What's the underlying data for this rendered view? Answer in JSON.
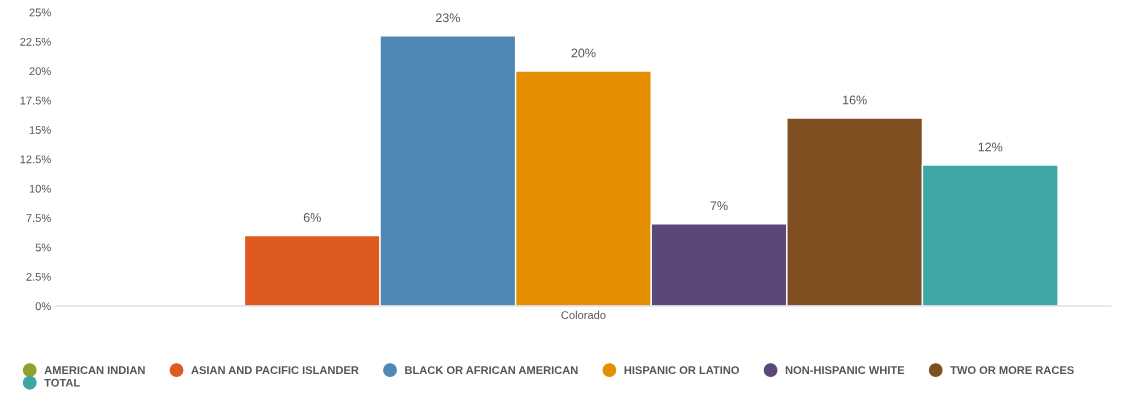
{
  "chart_data": {
    "type": "bar",
    "categories": [
      "Colorado"
    ],
    "series": [
      {
        "name": "AMERICAN INDIAN",
        "color": "#8fa32a",
        "values": [
          null
        ],
        "value_labels": [
          null
        ]
      },
      {
        "name": "ASIAN AND PACIFIC ISLANDER",
        "color": "#de5a21",
        "values": [
          6
        ],
        "value_labels": [
          "6%"
        ]
      },
      {
        "name": "BLACK OR AFRICAN AMERICAN",
        "color": "#5088b5",
        "values": [
          23
        ],
        "value_labels": [
          "23%"
        ]
      },
      {
        "name": "HISPANIC OR LATINO",
        "color": "#e58f00",
        "values": [
          20
        ],
        "value_labels": [
          "20%"
        ]
      },
      {
        "name": "NON-HISPANIC WHITE",
        "color": "#5c4878",
        "values": [
          7
        ],
        "value_labels": [
          "7%"
        ]
      },
      {
        "name": "TWO OR MORE RACES",
        "color": "#7f4f22",
        "values": [
          16
        ],
        "value_labels": [
          "16%"
        ]
      },
      {
        "name": "TOTAL",
        "color": "#3ea6a3",
        "values": [
          12
        ],
        "value_labels": [
          "12%"
        ]
      }
    ],
    "ylim": [
      0,
      25
    ],
    "yticks": [
      {
        "value": 0,
        "label": "0%"
      },
      {
        "value": 2.5,
        "label": "2.5%"
      },
      {
        "value": 5,
        "label": "5%"
      },
      {
        "value": 7.5,
        "label": "7.5%"
      },
      {
        "value": 10,
        "label": "10%"
      },
      {
        "value": 12.5,
        "label": "12.5%"
      },
      {
        "value": 15,
        "label": "15%"
      },
      {
        "value": 17.5,
        "label": "17.5%"
      },
      {
        "value": 20,
        "label": "20%"
      },
      {
        "value": 22.5,
        "label": "22.5%"
      },
      {
        "value": 25,
        "label": "25%"
      }
    ],
    "grid": false,
    "legend": "bottom",
    "marker": "circle"
  }
}
